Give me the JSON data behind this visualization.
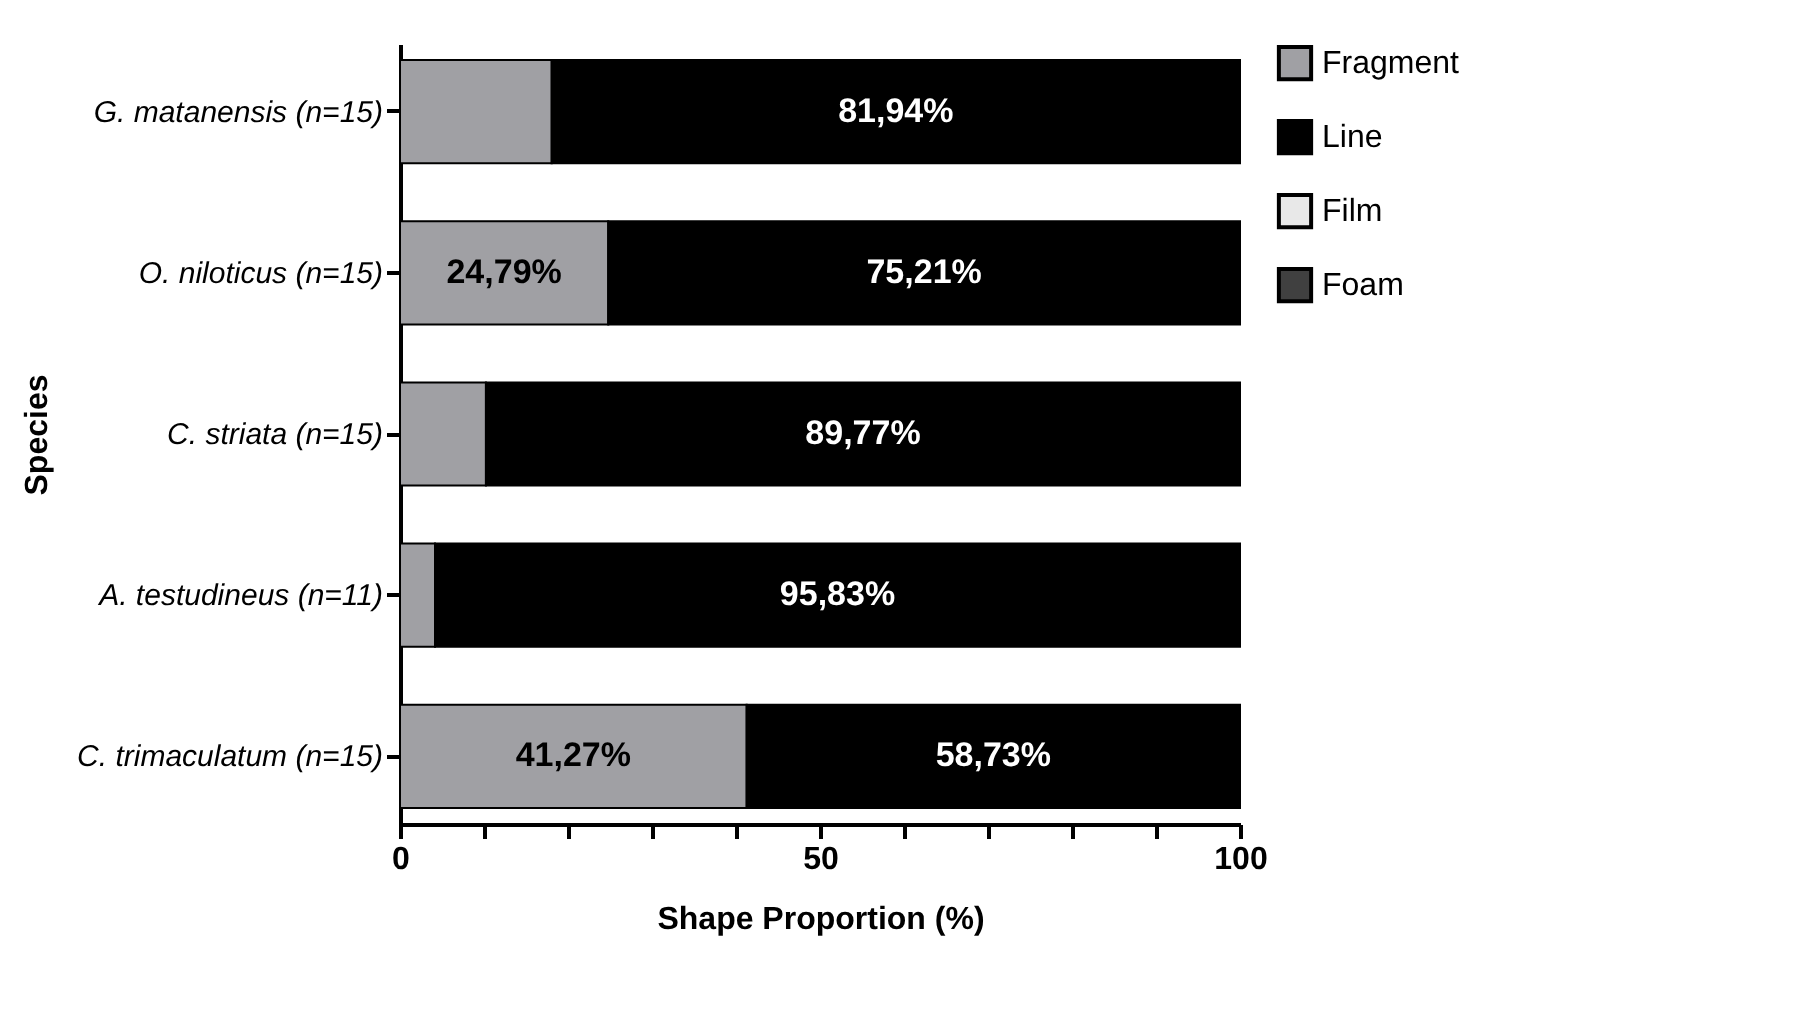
{
  "chart_data": {
    "type": "bar",
    "orientation": "horizontal",
    "stacked": true,
    "xlabel": "Shape Proportion (%)",
    "ylabel": "Species",
    "categories": [
      "G. matanensis (n=15)",
      "O. niloticus (n=15)",
      "C. striata (n=15)",
      "A. testudineus (n=11)",
      "C. trimaculatum (n=15)"
    ],
    "series": [
      {
        "name": "Fragment",
        "color": "#a0a0a4",
        "values": [
          18.06,
          24.79,
          10.23,
          4.17,
          41.27
        ],
        "value_labels": [
          null,
          "24,79%",
          null,
          null,
          "41,27%"
        ]
      },
      {
        "name": "Line",
        "color": "#000000",
        "values": [
          81.94,
          75.21,
          89.77,
          95.83,
          58.73
        ],
        "value_labels": [
          "81,94%",
          "75,21%",
          "89,77%",
          "95,83%",
          "58,73%"
        ]
      },
      {
        "name": "Film",
        "color": "#e8e8e8",
        "values": [
          0,
          0,
          0,
          0,
          0
        ]
      },
      {
        "name": "Foam",
        "color": "#404040",
        "values": [
          0,
          0,
          0,
          0,
          0
        ]
      }
    ],
    "xlim": [
      0,
      100
    ],
    "xticks": [
      0,
      {
        "value": 10,
        "label": null
      },
      {
        "value": 20,
        "label": null
      },
      {
        "value": 30,
        "label": null
      },
      {
        "value": 40,
        "label": null
      },
      50,
      {
        "value": 60,
        "label": null
      },
      {
        "value": 70,
        "label": null
      },
      {
        "value": 80,
        "label": null
      },
      {
        "value": 90,
        "label": null
      },
      100
    ],
    "legend": "right",
    "grid": false
  }
}
